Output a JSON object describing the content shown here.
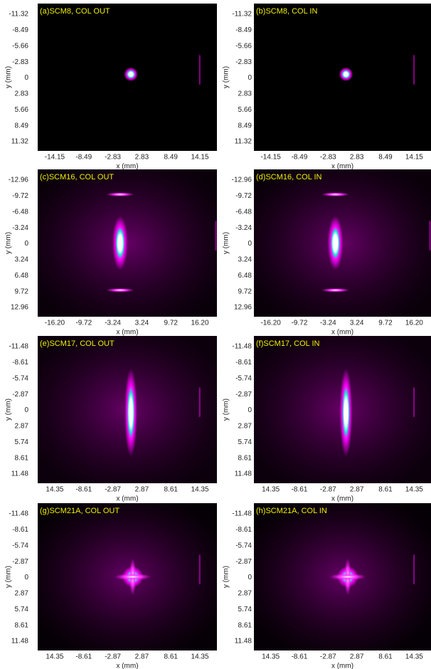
{
  "panels": [
    {
      "title": "(a)SCM8, COL OUT",
      "x_label": "x (mm)",
      "y_label": "y (mm)",
      "x_ticks": [
        "-14.15",
        "-8.49",
        "-2.83",
        "2.83",
        "8.49",
        "14.15"
      ],
      "y_ticks": [
        "-11.32",
        "-8.49",
        "-5.66",
        "-2.83",
        "0",
        "2.83",
        "5.66",
        "8.49",
        "11.32"
      ]
    },
    {
      "title": "(b)SCM8, COL IN",
      "x_label": "x (mm)",
      "y_label": "y (mm)",
      "x_ticks": [
        "-14.15",
        "-8.49",
        "-2.83",
        "2.83",
        "8.49",
        "14.15"
      ],
      "y_ticks": [
        "-11.32",
        "-8.49",
        "-5.66",
        "-2.83",
        "0",
        "2.83",
        "5.66",
        "8.49",
        "11.32"
      ]
    },
    {
      "title": "(c)SCM16, COL OUT",
      "x_label": "x (mm)",
      "y_label": "y (mm)",
      "x_ticks": [
        "-16.20",
        "-9.72",
        "-3.24",
        "3.24",
        "9.72",
        "16.20"
      ],
      "y_ticks": [
        "-12.96",
        "-9.72",
        "-6.48",
        "-3.24",
        "0",
        "3.24",
        "6.48",
        "9.72",
        "12.96"
      ]
    },
    {
      "title": "(d)SCM16, COL IN",
      "x_label": "x (mm)",
      "y_label": "y (mm)",
      "x_ticks": [
        "-16.20",
        "-9.72",
        "-3.24",
        "3.24",
        "9.72",
        "16.20"
      ],
      "y_ticks": [
        "-12.96",
        "-9.72",
        "-6.48",
        "-3.24",
        "0",
        "3.24",
        "6.48",
        "9.72",
        "12.96"
      ]
    },
    {
      "title": "(e)SCM17, COL OUT",
      "x_label": "x (mm)",
      "y_label": "y (mm)",
      "x_ticks": [
        "14.35",
        "-8.61",
        "-2.87",
        "2.87",
        "8.61",
        "14.35"
      ],
      "y_ticks": [
        "-11.48",
        "-8.61",
        "-5.74",
        "-2.87",
        "0",
        "2.87",
        "5.74",
        "8.61",
        "11.48"
      ]
    },
    {
      "title": "(f)SCM17, COL IN",
      "x_label": "x (mm)",
      "y_label": "y (mm)",
      "x_ticks": [
        "14.35",
        "-8.61",
        "-2.87",
        "2.87",
        "8.61",
        "14.35"
      ],
      "y_ticks": [
        "-11.48",
        "-8.61",
        "-5.74",
        "-2.87",
        "0",
        "2.87",
        "5.74",
        "8.61",
        "11.48"
      ]
    },
    {
      "title": "(g)SCM21A, COL OUT",
      "x_label": "x (mm)",
      "y_label": "y (mm)",
      "x_ticks": [
        "14.35",
        "-8.61",
        "-2.87",
        "2.87",
        "8.61",
        "14.35"
      ],
      "y_ticks": [
        "-11.48",
        "-8.61",
        "-5.74",
        "-2.87",
        "0",
        "2.87",
        "5.74",
        "8.61",
        "11.48"
      ]
    },
    {
      "title": "(h)SCM21A, COL IN",
      "x_label": "x (mm)",
      "y_label": "y (mm)",
      "x_ticks": [
        "14.35",
        "-8.61",
        "-2.87",
        "2.87",
        "8.61",
        "14.35"
      ],
      "y_ticks": [
        "-11.48",
        "-8.61",
        "-5.74",
        "-2.87",
        "0",
        "2.87",
        "5.74",
        "8.61",
        "11.48"
      ]
    }
  ]
}
